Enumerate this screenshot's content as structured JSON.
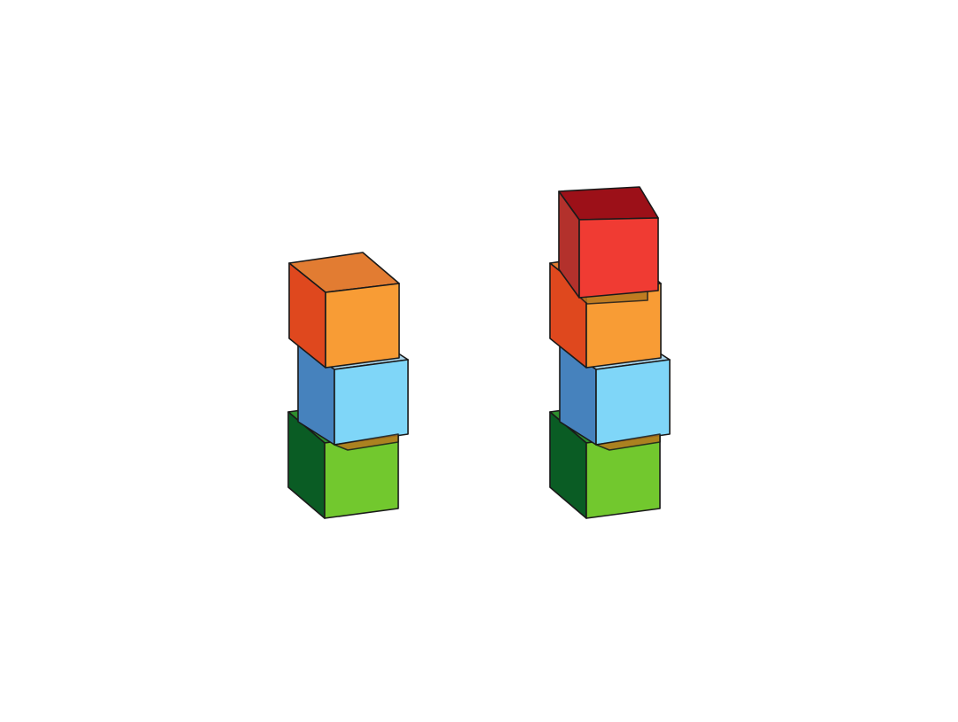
{
  "scene": {
    "background": "#ffffff",
    "stacks": [
      {
        "name": "left-stack",
        "blocks": [
          {
            "name": "green-cube",
            "position_from_bottom": 1,
            "front": "#72c82e",
            "side": "#0a5c24",
            "top": "#2e8f2e"
          },
          {
            "name": "blue-cube",
            "position_from_bottom": 2,
            "front": "#7fd6f8",
            "side": "#4682bd",
            "top": "#a9d4ea"
          },
          {
            "name": "orange-cube",
            "position_from_bottom": 3,
            "front": "#f89c35",
            "side": "#df481e",
            "top": "#e27c32"
          }
        ]
      },
      {
        "name": "right-stack",
        "blocks": [
          {
            "name": "green-cube",
            "position_from_bottom": 1,
            "front": "#72c82e",
            "side": "#0a5c24",
            "top": "#2e8f2e"
          },
          {
            "name": "blue-cube",
            "position_from_bottom": 2,
            "front": "#7fd6f8",
            "side": "#4682bd",
            "top": "#a9d4ea"
          },
          {
            "name": "orange-cube",
            "position_from_bottom": 3,
            "front": "#f89c35",
            "side": "#df481e",
            "top": "#e27c32"
          },
          {
            "name": "red-cube",
            "position_from_bottom": 4,
            "front": "#f03b33",
            "side": "#b3312c",
            "top": "#9c1018"
          }
        ]
      }
    ],
    "shadow_color": "#b5761e"
  }
}
